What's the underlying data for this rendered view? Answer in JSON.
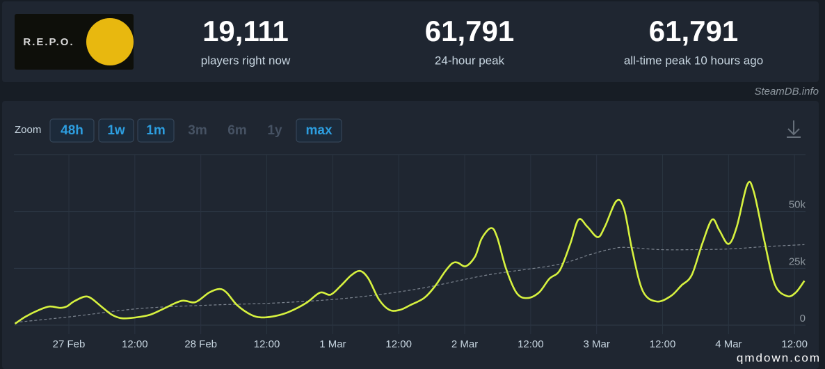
{
  "logo_text": "R.E.P.O.",
  "stats": [
    {
      "value": "19,111",
      "label": "players right now"
    },
    {
      "value": "61,791",
      "label": "24-hour peak"
    },
    {
      "value": "61,791",
      "label": "all-time peak 10 hours ago"
    }
  ],
  "source": "SteamDB.info",
  "zoom": {
    "label": "Zoom",
    "buttons": [
      {
        "text": "48h",
        "disabled": false
      },
      {
        "text": "1w",
        "disabled": false
      },
      {
        "text": "1m",
        "disabled": false
      },
      {
        "text": "3m",
        "disabled": true
      },
      {
        "text": "6m",
        "disabled": true
      },
      {
        "text": "1y",
        "disabled": true
      },
      {
        "text": "max",
        "disabled": false
      }
    ]
  },
  "watermark": "qmdown.com",
  "chart_data": {
    "type": "line",
    "xlim": [
      -10,
      134
    ],
    "ylim": [
      0,
      75000
    ],
    "xticks": [
      {
        "value": 0,
        "label": "27 Feb"
      },
      {
        "value": 12,
        "label": "12:00"
      },
      {
        "value": 24,
        "label": "28 Feb"
      },
      {
        "value": 36,
        "label": "12:00"
      },
      {
        "value": 48,
        "label": "1 Mar"
      },
      {
        "value": 60,
        "label": "12:00"
      },
      {
        "value": 72,
        "label": "2 Mar"
      },
      {
        "value": 84,
        "label": "12:00"
      },
      {
        "value": 96,
        "label": "3 Mar"
      },
      {
        "value": 108,
        "label": "12:00"
      },
      {
        "value": 120,
        "label": "4 Mar"
      },
      {
        "value": 132,
        "label": "12:00"
      }
    ],
    "yticks": [
      0,
      {
        "value": 25000,
        "label": "25k"
      },
      {
        "value": 50000,
        "label": "50k"
      }
    ],
    "grid": true,
    "series": [
      {
        "color": "#d7f23f",
        "dashed": false,
        "x": [
          -9.8,
          -7.9,
          -5.4,
          -3.5,
          -1.6,
          -0.4,
          0.9,
          2.8,
          4.0,
          5.9,
          7.8,
          9.7,
          12.2,
          14.8,
          17.3,
          20.5,
          23.0,
          25.5,
          27.4,
          28.7,
          30.6,
          33.1,
          35.0,
          37.5,
          40.0,
          43.2,
          45.7,
          47.6,
          49.5,
          51.4,
          53.0,
          54.5,
          56.4,
          58.3,
          60.2,
          62.1,
          64.6,
          66.5,
          68.4,
          69.7,
          70.7,
          72.2,
          73.9,
          75.1,
          76.8,
          77.9,
          79.5,
          81.4,
          83.3,
          85.5,
          87.4,
          89.3,
          91.2,
          92.7,
          94.3,
          96.2,
          97.5,
          99.6,
          101.0,
          102.5,
          104.4,
          106.9,
          109.5,
          111.4,
          113.3,
          115.2,
          117.0,
          118.3,
          120.0,
          121.5,
          123.4,
          124.6,
          126.5,
          128.4,
          130.6,
          132.2,
          133.8
        ],
        "values": [
          600,
          3700,
          6700,
          8200,
          7600,
          8200,
          10400,
          12500,
          11900,
          8200,
          4600,
          3000,
          3400,
          4600,
          7300,
          10700,
          10100,
          14300,
          15900,
          14300,
          8800,
          4600,
          3400,
          4000,
          5800,
          9800,
          14300,
          13400,
          17400,
          22000,
          23800,
          20400,
          11300,
          6700,
          6700,
          8800,
          11900,
          16800,
          23500,
          27100,
          27500,
          25900,
          30200,
          38100,
          42700,
          38700,
          25000,
          14300,
          11900,
          14300,
          20400,
          24100,
          35700,
          46400,
          43300,
          38700,
          43300,
          54600,
          51000,
          32600,
          15000,
          10400,
          12800,
          17400,
          22000,
          35700,
          46400,
          41800,
          35700,
          43300,
          61800,
          58600,
          37200,
          18000,
          12800,
          14300,
          19500
        ]
      },
      {
        "color": "#7d8590",
        "dashed": true,
        "x": [
          -9.8,
          0.3,
          12.9,
          25.5,
          38.1,
          50.8,
          63.4,
          76.0,
          88.6,
          94.9,
          98.7,
          101.3,
          107.6,
          113.9,
          120.2,
          126.5,
          133.8
        ],
        "values": [
          1200,
          3700,
          7300,
          8800,
          9800,
          11900,
          15900,
          22000,
          26500,
          31100,
          33500,
          34200,
          33200,
          33200,
          33500,
          34500,
          35400
        ]
      }
    ]
  }
}
